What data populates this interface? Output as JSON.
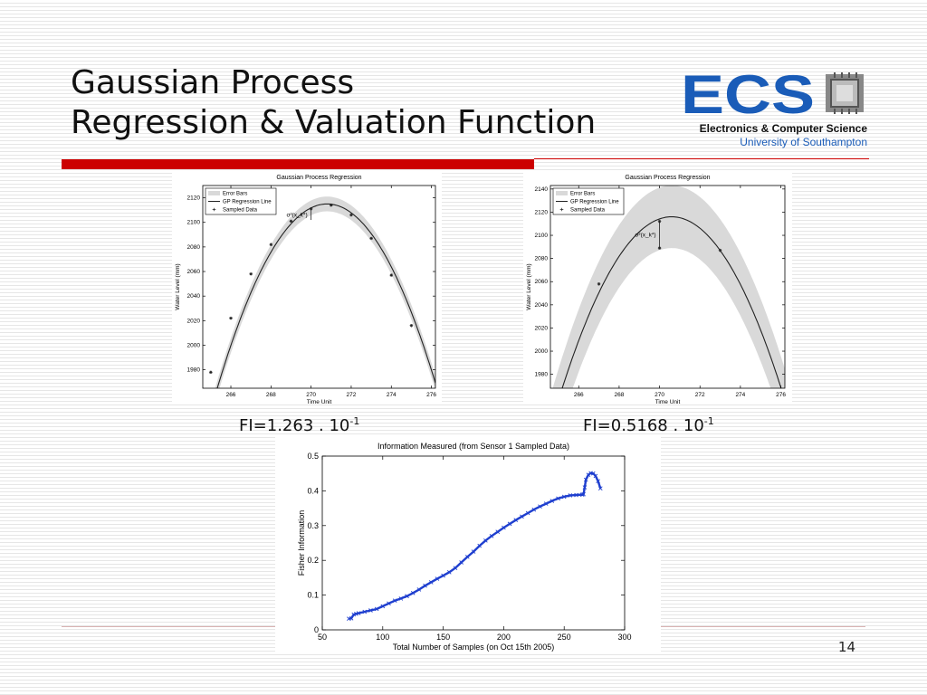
{
  "slide": {
    "title_line1": "Gaussian Process",
    "title_line2": "Regression & Valuation Function",
    "page_number": "14",
    "accent_color": "#cc0000"
  },
  "logo": {
    "letters": "ECS",
    "line1": "Electronics & Computer Science",
    "line2": "University of Southampton",
    "brand_color": "#1a5cb8"
  },
  "captions": {
    "left_fi": "FI=1.263 . 10",
    "left_exp": "-1",
    "right_fi": "FI=0.5168 . 10",
    "right_exp": "-1"
  },
  "chart_data": [
    {
      "type": "line",
      "title": "Gaussian Process Regression",
      "xlabel": "Time Unit",
      "ylabel": "Water Level (mm)",
      "xlim": [
        264.6,
        276.2
      ],
      "ylim": [
        1965,
        2130
      ],
      "xticks": [
        266,
        268,
        270,
        272,
        274,
        276
      ],
      "yticks": [
        1980,
        2000,
        2020,
        2040,
        2060,
        2080,
        2100,
        2120
      ],
      "legend": [
        "Error Bars",
        "GP Regression Line",
        "Sampled Data"
      ],
      "legend_position": "top-left",
      "annotation": "σ²(x_k*)",
      "annotation_x": 270,
      "regression": {
        "peak_x": 270.8,
        "peak_y": 2115,
        "curvature": 5.0
      },
      "error_band_half_width": 6,
      "sampled_data": {
        "x": [
          265,
          266,
          267,
          268,
          269,
          270,
          271,
          272,
          273,
          274,
          275,
          276
        ],
        "y": [
          1978,
          2022,
          2058,
          2082,
          2101,
          2111,
          2114,
          2106,
          2087,
          2057,
          2016,
          1963
        ]
      },
      "sigma_interval": [
        2102,
        2110
      ]
    },
    {
      "type": "line",
      "title": "Gaussian Process Regression",
      "xlabel": "Time Unit",
      "ylabel": "Water Level (mm)",
      "xlim": [
        264.6,
        276.2
      ],
      "ylim": [
        1968,
        2143
      ],
      "xticks": [
        266,
        268,
        270,
        272,
        274,
        276
      ],
      "yticks": [
        1980,
        2000,
        2020,
        2040,
        2060,
        2080,
        2100,
        2120,
        2140
      ],
      "legend": [
        "Error Bars",
        "GP Regression Line",
        "Sampled Data"
      ],
      "legend_position": "top-left",
      "annotation": "σ²(x_k*)",
      "annotation_x": 270,
      "regression": {
        "peak_x": 270.6,
        "peak_y": 2116,
        "curvature": 5.05
      },
      "error_band_half_width": 27,
      "sampled_data": {
        "x": [
          267,
          270,
          270,
          273,
          276
        ],
        "y": [
          2058,
          2112,
          2089,
          2087,
          1966
        ]
      },
      "sigma_interval": [
        2089,
        2112
      ]
    },
    {
      "type": "line",
      "title": "Information Measured (from Sensor 1 Sampled Data)",
      "xlabel": "Total Number of Samples (on Oct 15th 2005)",
      "ylabel": "Fisher Information",
      "xlim": [
        50,
        300
      ],
      "ylim": [
        0,
        0.5
      ],
      "xticks": [
        50,
        100,
        150,
        200,
        250,
        300
      ],
      "yticks": [
        0,
        0.1,
        0.2,
        0.3,
        0.4,
        0.5
      ],
      "marker": "x",
      "series": [
        {
          "x": [
            72,
            74,
            76,
            78,
            80,
            85,
            90,
            95,
            100,
            105,
            110,
            115,
            120,
            125,
            130,
            135,
            140,
            145,
            150,
            155,
            160,
            165,
            170,
            175,
            180,
            185,
            190,
            195,
            200,
            205,
            210,
            215,
            220,
            225,
            230,
            235,
            240,
            245,
            250,
            255,
            260,
            265,
            266,
            267,
            268,
            270,
            272,
            274,
            276,
            278,
            280
          ],
          "y": [
            0.032,
            0.033,
            0.044,
            0.046,
            0.048,
            0.052,
            0.056,
            0.06,
            0.068,
            0.076,
            0.084,
            0.09,
            0.097,
            0.106,
            0.116,
            0.127,
            0.137,
            0.147,
            0.156,
            0.166,
            0.178,
            0.194,
            0.21,
            0.225,
            0.242,
            0.257,
            0.27,
            0.282,
            0.294,
            0.305,
            0.316,
            0.326,
            0.336,
            0.346,
            0.355,
            0.363,
            0.371,
            0.378,
            0.383,
            0.387,
            0.388,
            0.389,
            0.39,
            0.41,
            0.432,
            0.446,
            0.451,
            0.45,
            0.443,
            0.428,
            0.407
          ]
        }
      ]
    }
  ]
}
